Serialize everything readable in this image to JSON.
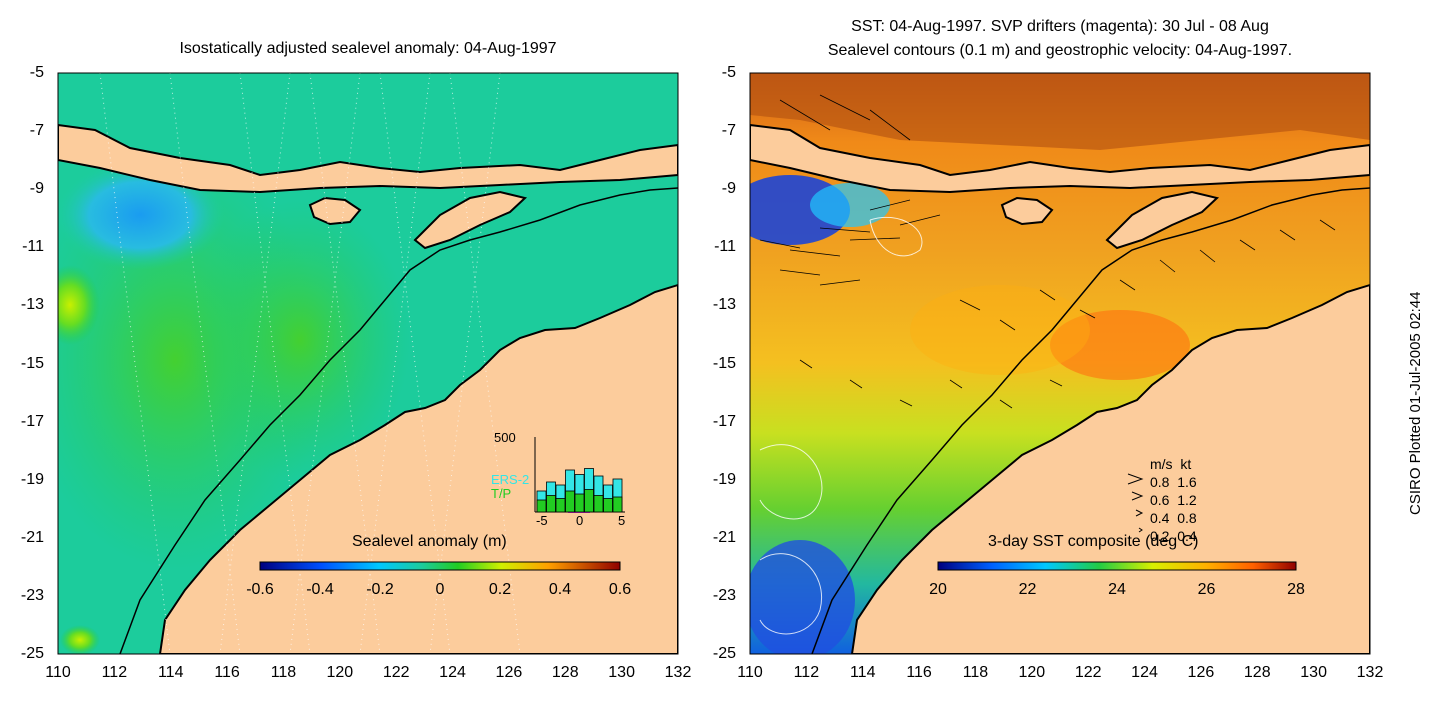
{
  "left_panel": {
    "title": "Isostatically adjusted sealevel anomaly: 04-Aug-1997",
    "colorbar": {
      "label": "Sealevel anomaly (m)",
      "ticks": [
        "-0.6",
        "-0.4",
        "-0.2",
        "0",
        "0.2",
        "0.4",
        "0.6"
      ]
    },
    "inset": {
      "ymax_label": "500",
      "legend": [
        "ERS-2",
        "T/P"
      ],
      "x_ticks": [
        "-5",
        "0",
        "5"
      ],
      "ers2_values": [
        140,
        200,
        180,
        280,
        250,
        290,
        240,
        180,
        220
      ],
      "tp_values": [
        80,
        110,
        90,
        140,
        120,
        150,
        110,
        90,
        100
      ],
      "colors": {
        "ers2": "#33e6e6",
        "tp": "#22cc22",
        "window": "#e020e0"
      }
    }
  },
  "right_panel": {
    "title_line1": "SST: 04-Aug-1997. SVP drifters (magenta): 30 Jul - 08 Aug",
    "title_line2": "Sealevel contours (0.1 m) and geostrophic velocity: 04-Aug-1997.",
    "colorbar": {
      "label": "3-day SST composite (deg C)",
      "ticks": [
        "20",
        "22",
        "24",
        "26",
        "28"
      ]
    },
    "velocity_legend": {
      "header": [
        "m/s",
        "kt"
      ],
      "rows": [
        [
          "0.8",
          "1.6"
        ],
        [
          "0.6",
          "1.2"
        ],
        [
          "0.4",
          "0.8"
        ],
        [
          "0.2",
          "0.4"
        ]
      ]
    }
  },
  "y_axis_labels": [
    "-5",
    "-7",
    "-9",
    "-11",
    "-13",
    "-15",
    "-17",
    "-19",
    "-21",
    "-23",
    "-25"
  ],
  "x_axis_labels": [
    "110",
    "112",
    "114",
    "116",
    "118",
    "120",
    "122",
    "124",
    "126",
    "128",
    "130",
    "132"
  ],
  "credit": "CSIRO Plotted 01-Jul-2005 02:44",
  "colors": {
    "land": "#fccc9c",
    "ocean_left": "#1ccc9c",
    "ocean_right": "#f0a020"
  }
}
